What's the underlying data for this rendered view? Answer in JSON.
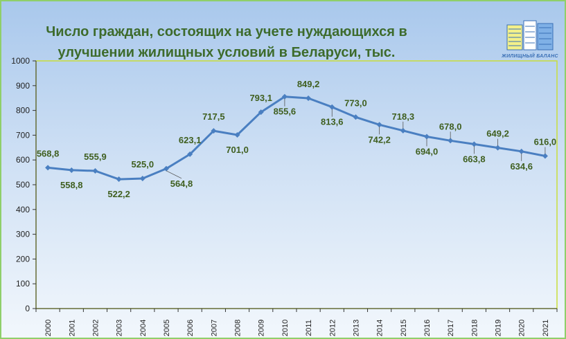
{
  "title": {
    "line1": "Число граждан, состоящих на учете нуждающихся в",
    "line2": "улучшении жилищных условий в Беларуси, тыс."
  },
  "logo": {
    "text": "ЖИЛИЩНЫЙ БАЛАНС"
  },
  "colors": {
    "line": "#4a7fc1",
    "labels": "#3f5f1f",
    "plot_border": "#c9de3a",
    "title": "#3d6b2c"
  },
  "chart_data": {
    "type": "line",
    "title": "Число граждан, состоящих на учете нуждающихся в улучшении жилищных условий в Беларуси, тыс.",
    "xlabel": "",
    "ylabel": "",
    "ylim": [
      0,
      1000
    ],
    "yticks": [
      0,
      100,
      200,
      300,
      400,
      500,
      600,
      700,
      800,
      900,
      1000
    ],
    "grid": false,
    "legend": "none",
    "x": [
      "2000",
      "2001",
      "2002",
      "2003",
      "2004",
      "2005",
      "2006",
      "2007",
      "2008",
      "2009",
      "2010",
      "2011",
      "2012",
      "2013",
      "2014",
      "2015",
      "2016",
      "2017",
      "2018",
      "2019",
      "2020",
      "2021"
    ],
    "values": [
      568.8,
      558.8,
      555.9,
      522.2,
      525.0,
      564.8,
      623.1,
      717.5,
      701.0,
      793.1,
      855.6,
      849.2,
      813.6,
      773.0,
      742.2,
      718.3,
      694.0,
      678.0,
      663.8,
      649.2,
      634.6,
      616.0
    ],
    "data_labels": [
      "568,8",
      "558,8",
      "555,9",
      "522,2",
      "525,0",
      "564,8",
      "623,1",
      "717,5",
      "701,0",
      "793,1",
      "855,6",
      "849,2",
      "813,6",
      "773,0",
      "742,2",
      "718,3",
      "694,0",
      "678,0",
      "663,8",
      "649,2",
      "634,6",
      "616,0"
    ]
  }
}
